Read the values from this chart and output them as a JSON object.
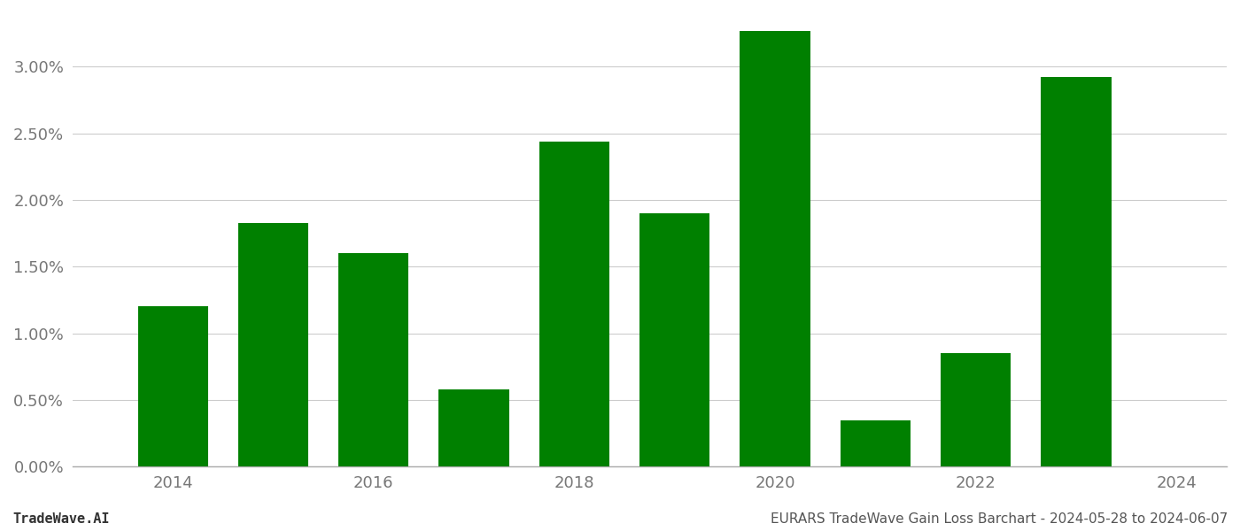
{
  "years": [
    2014,
    2015,
    2016,
    2017,
    2018,
    2019,
    2020,
    2021,
    2022,
    2023
  ],
  "values": [
    0.012,
    0.0183,
    0.016,
    0.0058,
    0.0244,
    0.019,
    0.0327,
    0.0035,
    0.0085,
    0.0292
  ],
  "bar_color": "#008000",
  "background_color": "#ffffff",
  "grid_color": "#cccccc",
  "footer_left": "TradeWave.AI",
  "footer_right": "EURARS TradeWave Gain Loss Barchart - 2024-05-28 to 2024-06-07",
  "xlim": [
    2013.0,
    2024.5
  ],
  "ylim": [
    0,
    0.034
  ],
  "xtick_years": [
    2014,
    2016,
    2018,
    2020,
    2022,
    2024
  ],
  "yticks": [
    0.0,
    0.005,
    0.01,
    0.015,
    0.02,
    0.025,
    0.03
  ],
  "bar_width": 0.7
}
